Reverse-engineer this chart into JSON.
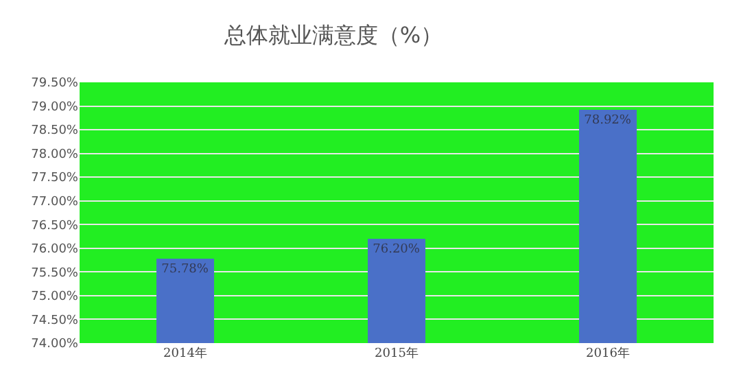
{
  "chart_data": {
    "type": "bar",
    "title": "总体就业满意度（%）",
    "categories": [
      "2014年",
      "2015年",
      "2016年"
    ],
    "values": [
      75.78,
      76.2,
      78.92
    ],
    "value_labels": [
      "75.78%",
      "76.20%",
      "78.92%"
    ],
    "color": "#4a70c8",
    "ylim": [
      74,
      79.5
    ],
    "yticks": [
      {
        "value": 74,
        "label": "74.00%"
      },
      {
        "value": 74.5,
        "label": "74.50%"
      },
      {
        "value": 75,
        "label": "75.00%"
      },
      {
        "value": 75.5,
        "label": "75.50%"
      },
      {
        "value": 76,
        "label": "76.00%"
      },
      {
        "value": 76.5,
        "label": "76.50%"
      },
      {
        "value": 77,
        "label": "77.00%"
      },
      {
        "value": 77.5,
        "label": "77.50%"
      },
      {
        "value": 78,
        "label": "78.00%"
      },
      {
        "value": 78.5,
        "label": "78.50%"
      },
      {
        "value": 79,
        "label": "79.00%"
      },
      {
        "value": 79.5,
        "label": "79.50%"
      }
    ],
    "grid": "y",
    "legend": false
  }
}
